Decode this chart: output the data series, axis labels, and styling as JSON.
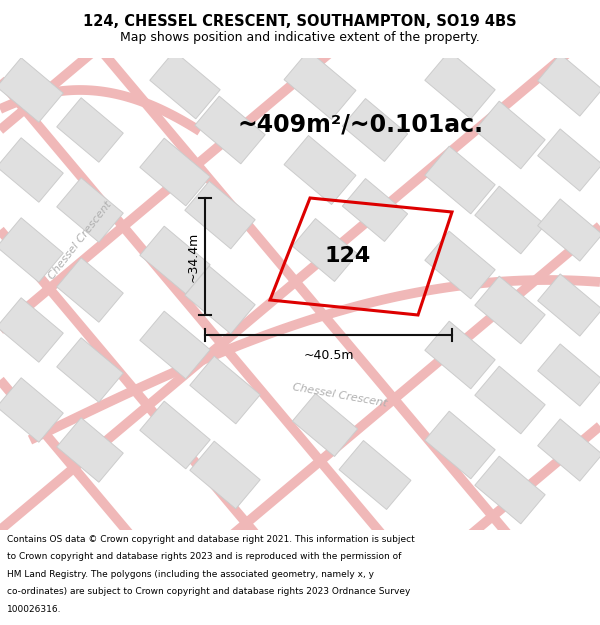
{
  "title_line1": "124, CHESSEL CRESCENT, SOUTHAMPTON, SO19 4BS",
  "title_line2": "Map shows position and indicative extent of the property.",
  "area_text": "~409m²/~0.101ac.",
  "label_number": "124",
  "dim_height": "~34.4m",
  "dim_width": "~40.5m",
  "footer_text": "Contains OS data © Crown copyright and database right 2021. This information is subject to Crown copyright and database rights 2023 and is reproduced with the permission of HM Land Registry. The polygons (including the associated geometry, namely x, y co-ordinates) are subject to Crown copyright and database rights 2023 Ordnance Survey 100026316.",
  "map_bg": "#f8f8f8",
  "road_color": "#f0b8b8",
  "road_fill": "#f8f0f0",
  "building_color": "#e0e0e0",
  "building_edge": "#cccccc",
  "plot_color": "#dd0000",
  "street_label_color": "#b0b0b0",
  "title_bg": "#ffffff",
  "footer_bg": "#ffffff",
  "dim_line_color": "#111111",
  "title_fontsize": 10.5,
  "subtitle_fontsize": 9,
  "area_fontsize": 17,
  "label_fontsize": 16,
  "dim_fontsize": 9,
  "street_fontsize": 8,
  "footer_fontsize": 6.5,
  "figsize": [
    6.0,
    6.25
  ],
  "dpi": 100
}
